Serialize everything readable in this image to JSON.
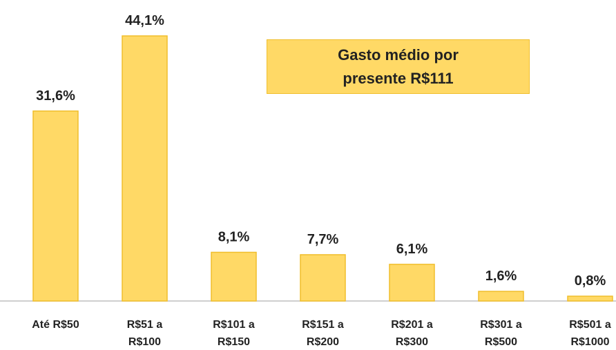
{
  "chart_data": {
    "type": "bar",
    "categories": [
      "Até R$50",
      "R$51 a R$100",
      "R$101 a R$150",
      "R$151 a R$200",
      "R$201 a R$300",
      "R$301 a R$500",
      "R$501 a R$1000"
    ],
    "values": [
      31.6,
      44.1,
      8.1,
      7.7,
      6.1,
      1.6,
      0.8
    ],
    "value_labels": [
      "31,6%",
      "44,1%",
      "8,1%",
      "7,7%",
      "6,1%",
      "1,6%",
      "0,8%"
    ],
    "color": "#FFD966",
    "annotation": [
      "Gasto médio por",
      "presente R$111"
    ]
  }
}
